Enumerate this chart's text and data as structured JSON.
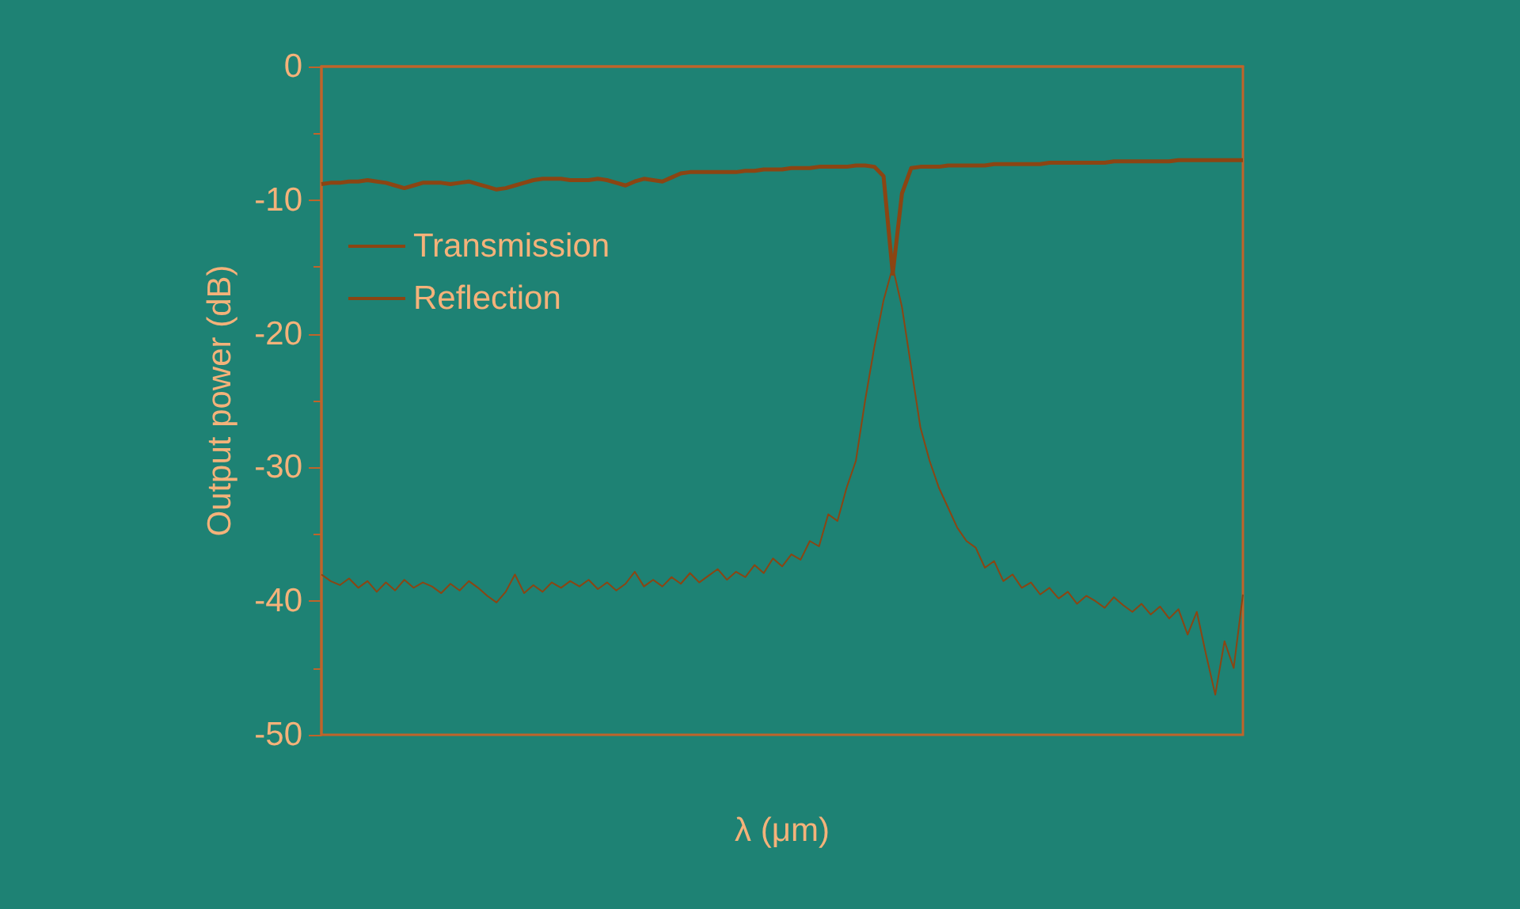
{
  "chart_data": {
    "type": "line",
    "xlabel": "λ (μm)",
    "ylabel": "Output power (dB)",
    "categories": [
      null,
      null,
      null,
      null,
      null,
      null,
      null,
      null,
      null,
      null,
      null,
      null,
      null,
      null,
      null,
      null,
      null,
      null,
      null,
      null,
      null,
      null,
      null,
      null,
      null,
      null,
      null,
      null,
      null,
      null,
      null,
      null,
      null,
      null,
      null,
      null,
      null,
      null,
      null,
      null,
      null,
      null,
      null,
      null,
      null,
      null,
      null,
      null,
      null,
      null,
      null,
      null,
      null,
      null,
      null,
      null,
      null,
      null,
      null,
      null,
      null,
      null,
      null,
      null,
      null,
      null,
      null,
      null,
      null,
      null,
      null,
      null,
      null,
      null,
      null,
      null,
      null,
      null,
      null,
      null,
      null,
      null,
      null,
      null,
      null,
      null,
      null,
      null,
      null,
      null,
      null,
      null,
      null,
      null,
      null,
      null,
      null,
      null,
      null,
      null,
      null
    ],
    "series": [
      {
        "name": "Transmission",
        "color": "#8b4513",
        "values": [
          -8.8,
          -8.7,
          -8.7,
          -8.6,
          -8.6,
          -8.5,
          -8.6,
          -8.7,
          -8.9,
          -9.1,
          -8.9,
          -8.7,
          -8.7,
          -8.7,
          -8.8,
          -8.7,
          -8.6,
          -8.8,
          -9.0,
          -9.2,
          -9.1,
          -8.9,
          -8.7,
          -8.5,
          -8.4,
          -8.4,
          -8.4,
          -8.5,
          -8.5,
          -8.5,
          -8.4,
          -8.5,
          -8.7,
          -8.9,
          -8.6,
          -8.4,
          -8.5,
          -8.6,
          -8.3,
          -8.0,
          -7.9,
          -7.9,
          -7.9,
          -7.9,
          -7.9,
          -7.9,
          -7.8,
          -7.8,
          -7.7,
          -7.7,
          -7.7,
          -7.6,
          -7.6,
          -7.6,
          -7.5,
          -7.5,
          -7.5,
          -7.5,
          -7.4,
          -7.4,
          -7.5,
          -8.2,
          -15.5,
          -9.5,
          -7.6,
          -7.5,
          -7.5,
          -7.5,
          -7.4,
          -7.4,
          -7.4,
          -7.4,
          -7.4,
          -7.3,
          -7.3,
          -7.3,
          -7.3,
          -7.3,
          -7.3,
          -7.2,
          -7.2,
          -7.2,
          -7.2,
          -7.2,
          -7.2,
          -7.2,
          -7.1,
          -7.1,
          -7.1,
          -7.1,
          -7.1,
          -7.1,
          -7.1,
          -7.0,
          -7.0,
          -7.0,
          -7.0,
          -7.0,
          -7.0,
          -7.0,
          -7.0
        ]
      },
      {
        "name": "Reflection",
        "color": "#8b4513",
        "values": [
          -38.0,
          -38.5,
          -38.8,
          -38.3,
          -39.0,
          -38.5,
          -39.3,
          -38.6,
          -39.2,
          -38.4,
          -39.0,
          -38.6,
          -38.9,
          -39.4,
          -38.7,
          -39.2,
          -38.5,
          -39.0,
          -39.6,
          -40.1,
          -39.3,
          -38.0,
          -39.4,
          -38.8,
          -39.3,
          -38.6,
          -39.0,
          -38.5,
          -38.9,
          -38.4,
          -39.1,
          -38.6,
          -39.2,
          -38.7,
          -37.8,
          -38.9,
          -38.4,
          -38.9,
          -38.2,
          -38.7,
          -37.9,
          -38.6,
          -38.1,
          -37.6,
          -38.4,
          -37.8,
          -38.2,
          -37.3,
          -37.9,
          -36.8,
          -37.4,
          -36.5,
          -36.9,
          -35.5,
          -35.9,
          -33.5,
          -34.0,
          -31.5,
          -29.5,
          -25.0,
          -21.0,
          -17.5,
          -15.0,
          -18.0,
          -22.5,
          -27.0,
          -29.5,
          -31.5,
          -33.0,
          -34.5,
          -35.5,
          -36.0,
          -37.5,
          -37.0,
          -38.5,
          -38.0,
          -39.0,
          -38.6,
          -39.5,
          -39.0,
          -39.8,
          -39.3,
          -40.2,
          -39.6,
          -40.0,
          -40.5,
          -39.7,
          -40.3,
          -40.8,
          -40.2,
          -41.0,
          -40.4,
          -41.3,
          -40.6,
          -42.5,
          -40.8,
          -44.0,
          -47.0,
          -43.0,
          -45.0,
          -39.5
        ]
      }
    ],
    "ylim": [
      -50,
      0
    ],
    "yticks": [
      -50,
      -40,
      -30,
      -20,
      -10,
      0
    ],
    "grid": false,
    "legend": "top left",
    "marker": "none",
    "line_style": "solid"
  }
}
